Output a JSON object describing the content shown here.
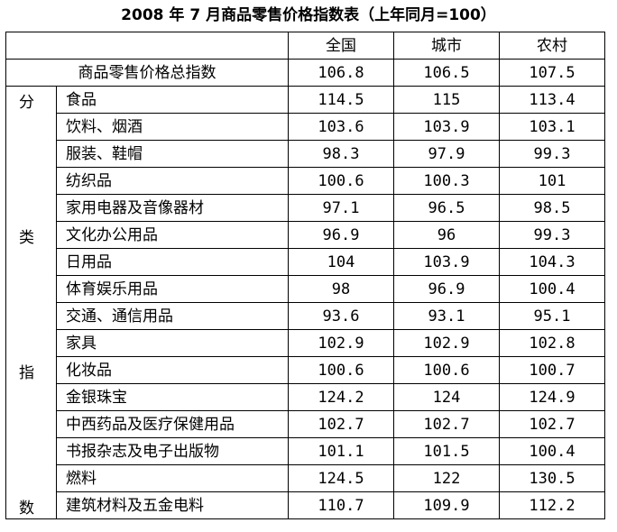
{
  "title": "2008 年 7 月商品零售价格指数表（上年同月=100）",
  "header": {
    "corner": "",
    "columns": [
      "全国",
      "城市",
      "农村"
    ]
  },
  "total": {
    "label": "商品零售价格总指数",
    "values": [
      "106.8",
      "106.5",
      "107.5"
    ]
  },
  "category_label": [
    "分",
    "类",
    "指",
    "数"
  ],
  "rows": [
    {
      "name": "食品",
      "values": [
        "114.5",
        "115",
        "113.4"
      ]
    },
    {
      "name": "饮料、烟酒",
      "values": [
        "103.6",
        "103.9",
        "103.1"
      ]
    },
    {
      "name": "服装、鞋帽",
      "values": [
        "98.3",
        "97.9",
        "99.3"
      ]
    },
    {
      "name": "纺织品",
      "values": [
        "100.6",
        "100.3",
        "101"
      ]
    },
    {
      "name": "家用电器及音像器材",
      "values": [
        "97.1",
        "96.5",
        "98.5"
      ]
    },
    {
      "name": "文化办公用品",
      "values": [
        "96.9",
        "96",
        "99.3"
      ]
    },
    {
      "name": "日用品",
      "values": [
        "104",
        "103.9",
        "104.3"
      ]
    },
    {
      "name": "体育娱乐用品",
      "values": [
        "98",
        "96.9",
        "100.4"
      ]
    },
    {
      "name": "交通、通信用品",
      "values": [
        "93.6",
        "93.1",
        "95.1"
      ]
    },
    {
      "name": "家具",
      "values": [
        "102.9",
        "102.9",
        "102.8"
      ]
    },
    {
      "name": "化妆品",
      "values": [
        "100.6",
        "100.6",
        "100.7"
      ]
    },
    {
      "name": "金银珠宝",
      "values": [
        "124.2",
        "124",
        "124.9"
      ]
    },
    {
      "name": "中西药品及医疗保健用品",
      "values": [
        "102.7",
        "102.7",
        "102.7"
      ]
    },
    {
      "name": "书报杂志及电子出版物",
      "values": [
        "101.1",
        "101.5",
        "100.4"
      ]
    },
    {
      "name": "燃料",
      "values": [
        "124.5",
        "122",
        "130.5"
      ]
    },
    {
      "name": "建筑材料及五金电料",
      "values": [
        "110.7",
        "109.9",
        "112.2"
      ]
    }
  ]
}
